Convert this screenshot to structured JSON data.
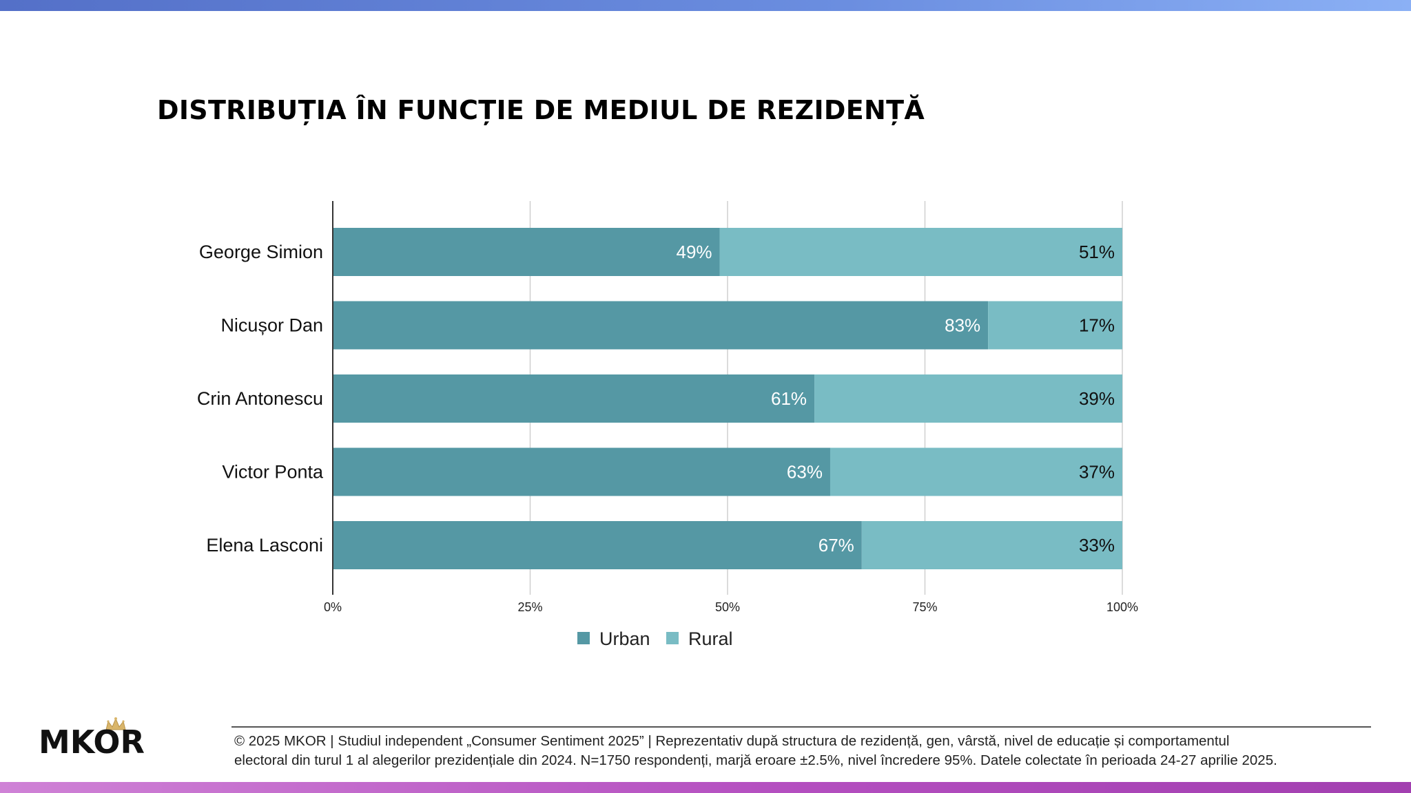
{
  "page": {
    "title": "DISTRIBUȚIA ÎN FUNCȚIE DE MEDIUL DE REZIDENȚĂ",
    "brand": "MKOR",
    "footer_line1": "© 2025 MKOR | Studiul independent „Consumer Sentiment 2025” | Reprezentativ după structura de rezidență, gen, vârstă, nivel de educație și comportamentul",
    "footer_line2": "electoral din turul 1 al alegerilor prezidențiale din 2024. N=1750 respondenți, marjă eroare ±2.5%, nivel încredere 95%. Datele colectate în perioada 24-27 aprilie 2025."
  },
  "chart_data": {
    "type": "bar",
    "orientation": "horizontal",
    "stacked": true,
    "categories": [
      "George Simion",
      "Nicușor Dan",
      "Crin Antonescu",
      "Victor Ponta",
      "Elena Lasconi"
    ],
    "series": [
      {
        "name": "Urban",
        "values": [
          49,
          83,
          61,
          63,
          67
        ],
        "labels": [
          "49%",
          "83%",
          "61%",
          "63%",
          "67%"
        ],
        "color": "#5598a4"
      },
      {
        "name": "Rural",
        "values": [
          51,
          17,
          39,
          37,
          33
        ],
        "labels": [
          "51%",
          "17%",
          "39%",
          "37%",
          "33%"
        ],
        "color": "#79bcc4"
      }
    ],
    "xlim": [
      0,
      100
    ],
    "xticks": [
      "0%",
      "25%",
      "50%",
      "75%",
      "100%"
    ],
    "grid": true,
    "legend": "bottom"
  }
}
